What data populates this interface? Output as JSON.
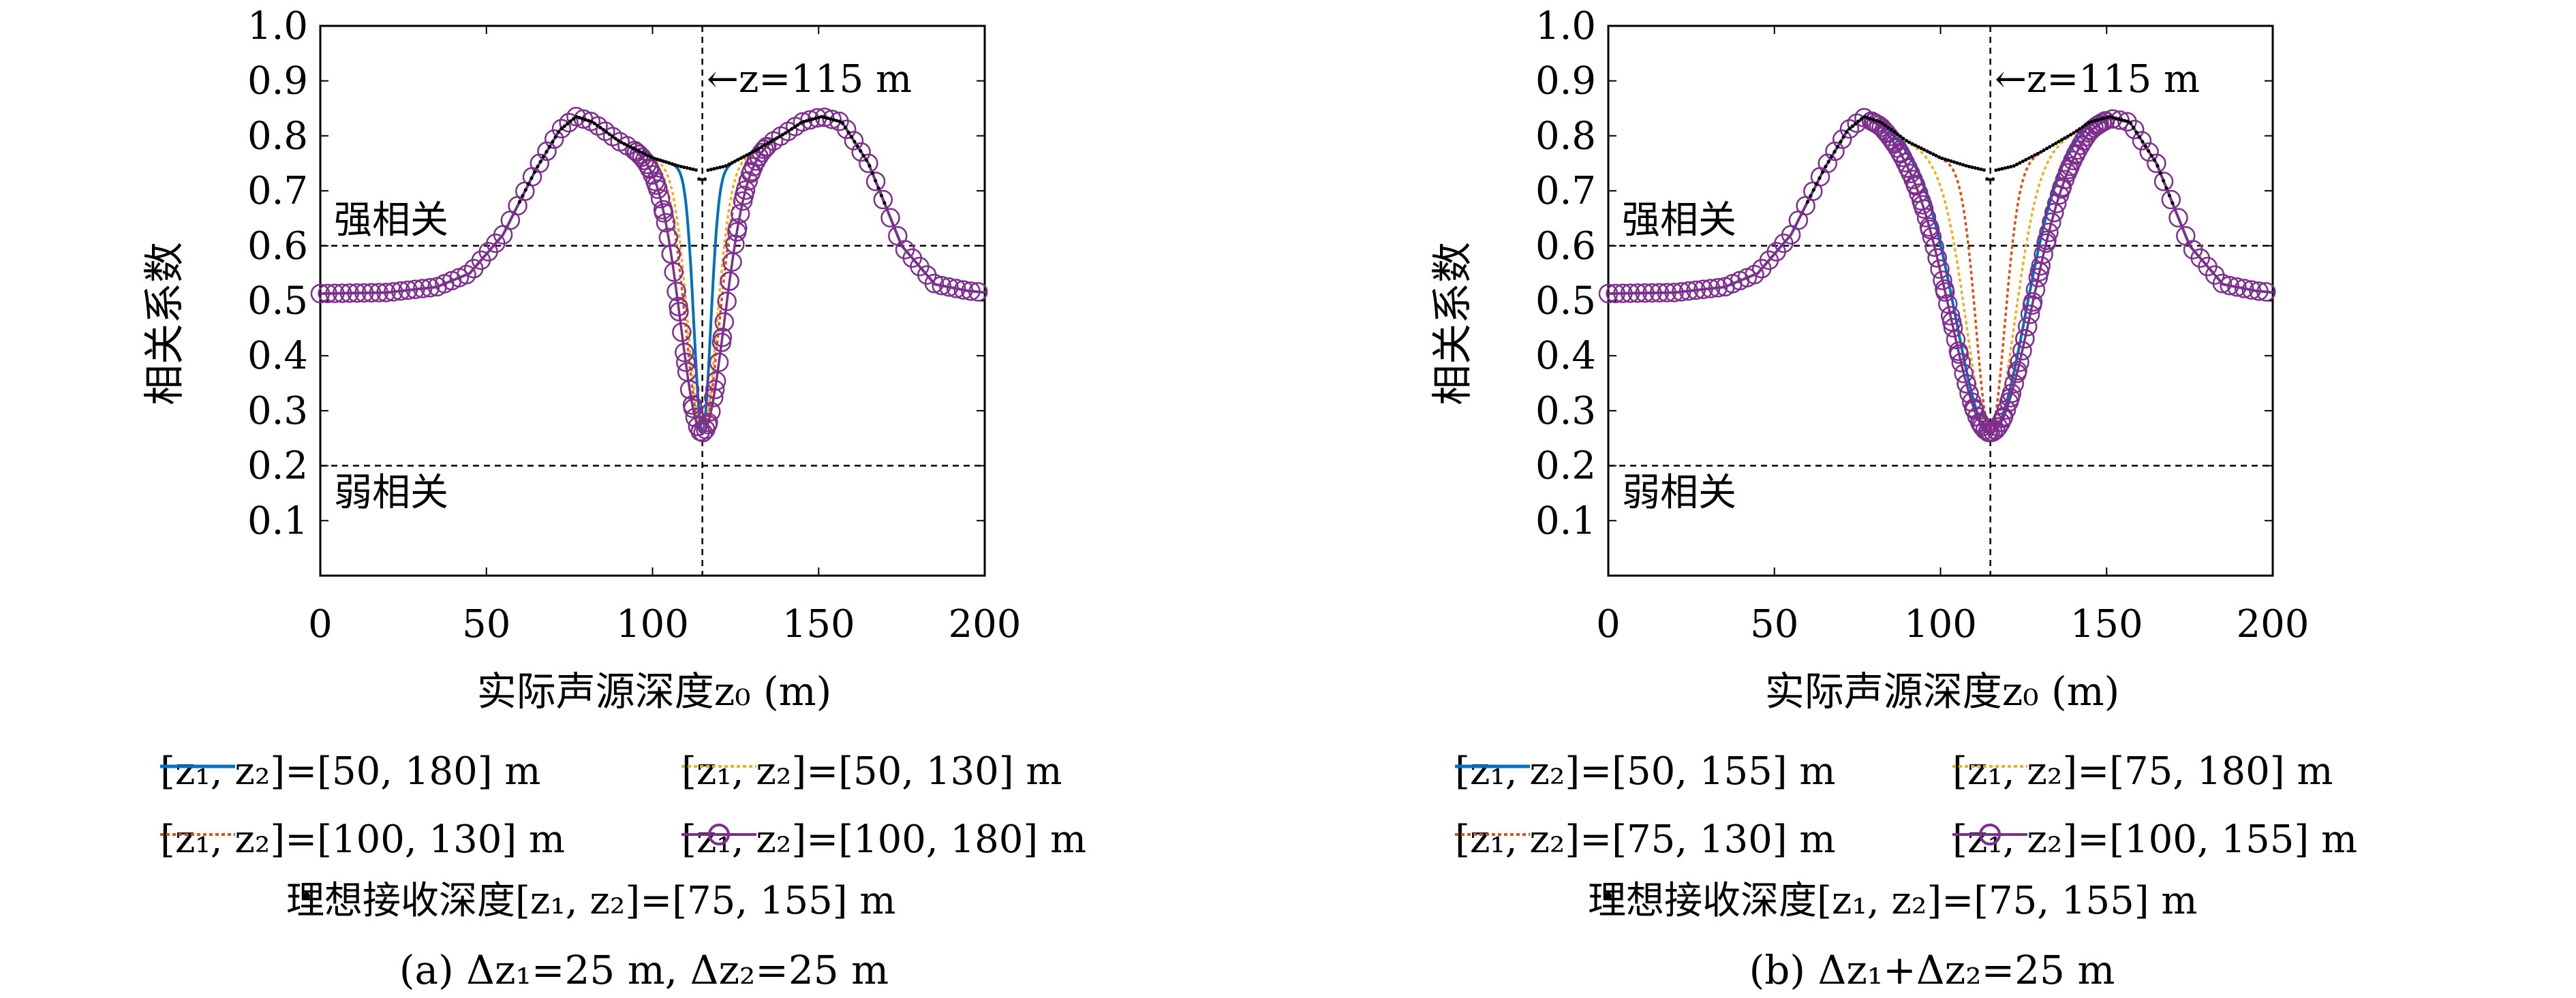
{
  "chart_data": [
    {
      "type": "line",
      "xlabel": "实际声源深度z₀ (m)",
      "ylabel": "相关系数",
      "xlim": [
        0,
        200
      ],
      "ylim": [
        0,
        1.0
      ],
      "xticks": [
        "0",
        "50",
        "100",
        "150",
        "200"
      ],
      "yticks": [
        "0.1",
        "0.2",
        "0.3",
        "0.4",
        "0.5",
        "0.6",
        "0.7",
        "0.8",
        "0.9",
        "1.0"
      ],
      "annotation": "←z=115 m",
      "vline_x": 115,
      "hlines": [
        {
          "y": 0.6,
          "label": "强相关"
        },
        {
          "y": 0.2,
          "label": "弱相关"
        }
      ],
      "caption": "(a) Δz₁=25 m, Δz₂=25 m",
      "legend": [
        {
          "label": "[z₁, z₂]=[50, 180] m",
          "color": "#0072bd",
          "style": "solid"
        },
        {
          "label": "[z₁, z₂]=[50, 130] m",
          "color": "#edb120",
          "style": "dotted"
        },
        {
          "label": "[z₁, z₂]=[100, 130] m",
          "color": "#d95319",
          "style": "dotted"
        },
        {
          "label": "[z₁, z₂]=[100, 180] m",
          "color": "#7e2f8e",
          "style": "circle"
        },
        {
          "label": "理想接收深度[z₁, z₂]=[75, 155] m",
          "color": "#000000",
          "style": "dot"
        }
      ],
      "series": [
        {
          "name": "[z₁, z₂]=[50, 180] m",
          "dip_width": 3.5
        },
        {
          "name": "[z₁, z₂]=[50, 130] m",
          "dip_width": 6.0
        },
        {
          "name": "[z₁, z₂]=[100, 130] m",
          "dip_width": 7.0
        },
        {
          "name": "[z₁, z₂]=[100, 180] m",
          "dip_width": 9.0
        },
        {
          "name": "理想接收深度[z₁, z₂]=[75, 155] m"
        }
      ],
      "shared_curve": {
        "x": [
          0,
          20,
          35,
          45,
          55,
          65,
          72,
          77,
          82,
          90,
          100,
          108,
          113,
          115,
          117,
          122,
          130,
          140,
          145,
          151,
          157,
          165,
          175,
          185,
          195,
          200
        ],
        "y": [
          0.513,
          0.515,
          0.525,
          0.55,
          0.62,
          0.74,
          0.81,
          0.835,
          0.825,
          0.79,
          0.76,
          0.745,
          0.738,
          0.735,
          0.738,
          0.745,
          0.77,
          0.805,
          0.825,
          0.835,
          0.825,
          0.75,
          0.6,
          0.53,
          0.518,
          0.515
        ]
      },
      "dip": {
        "x": 115,
        "min": 0.26
      }
    },
    {
      "type": "line",
      "xlabel": "实际声源深度z₀ (m)",
      "ylabel": "相关系数",
      "xlim": [
        0,
        200
      ],
      "ylim": [
        0,
        1.0
      ],
      "xticks": [
        "0",
        "50",
        "100",
        "150",
        "200"
      ],
      "yticks": [
        "0.1",
        "0.2",
        "0.3",
        "0.4",
        "0.5",
        "0.6",
        "0.7",
        "0.8",
        "0.9",
        "1.0"
      ],
      "annotation": "←z=115 m",
      "vline_x": 115,
      "hlines": [
        {
          "y": 0.6,
          "label": "强相关"
        },
        {
          "y": 0.2,
          "label": "弱相关"
        }
      ],
      "caption": "(b) Δz₁+Δz₂=25 m",
      "legend": [
        {
          "label": "[z₁, z₂]=[50, 155] m",
          "color": "#0072bd",
          "style": "solid"
        },
        {
          "label": "[z₁, z₂]=[75, 180] m",
          "color": "#edb120",
          "style": "dotted"
        },
        {
          "label": "[z₁, z₂]=[75, 130] m",
          "color": "#d95319",
          "style": "dotted"
        },
        {
          "label": "[z₁, z₂]=[100, 155] m",
          "color": "#7e2f8e",
          "style": "circle"
        },
        {
          "label": "理想接收深度[z₁, z₂]=[75, 155] m",
          "color": "#000000",
          "style": "dot"
        }
      ],
      "series": [
        {
          "name": "[z₁, z₂]=[50, 155] m",
          "dip_width": 14.0
        },
        {
          "name": "[z₁, z₂]=[75, 180] m",
          "dip_width": 10.0
        },
        {
          "name": "[z₁, z₂]=[75, 130] m",
          "dip_width": 6.0
        },
        {
          "name": "[z₁, z₂]=[100, 155] m",
          "dip_width": 16.0
        },
        {
          "name": "理想接收深度[z₁, z₂]=[75, 155] m"
        }
      ],
      "shared_curve": {
        "x": [
          0,
          20,
          35,
          45,
          55,
          65,
          72,
          77,
          82,
          90,
          100,
          108,
          113,
          115,
          117,
          122,
          130,
          140,
          145,
          151,
          157,
          165,
          175,
          185,
          195,
          200
        ],
        "y": [
          0.513,
          0.515,
          0.525,
          0.55,
          0.62,
          0.74,
          0.81,
          0.835,
          0.825,
          0.79,
          0.76,
          0.745,
          0.738,
          0.735,
          0.738,
          0.745,
          0.77,
          0.805,
          0.825,
          0.835,
          0.825,
          0.75,
          0.6,
          0.53,
          0.518,
          0.515
        ]
      },
      "dip": {
        "x": 115,
        "min": 0.26
      }
    }
  ]
}
